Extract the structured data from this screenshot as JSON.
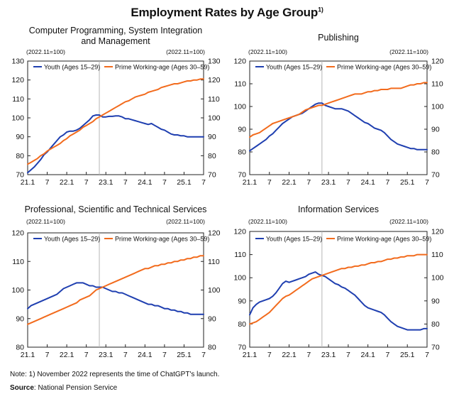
{
  "title": {
    "text": "Employment Rates by Age Group",
    "sup": "1)"
  },
  "note": "Note: 1) November 2022 represents the time of ChatGPT's launch.",
  "source": {
    "label": "Source",
    "text": ": National Pension Service"
  },
  "colors": {
    "youth": "#1f3fb0",
    "prime": "#f26b1d",
    "axis": "#222222",
    "marker": "#b5b5b5"
  },
  "chart_data": [
    {
      "type": "line",
      "title_lines": [
        "Computer Programming, System Integration",
        "and Management"
      ],
      "index_label_left": "(2022.11=100)",
      "index_label_right": "(2022.11=100)",
      "x_tick_labels": [
        "21.1",
        "7",
        "22.1",
        "7",
        "23.1",
        "7",
        "24.1",
        "7",
        "25.1",
        "7"
      ],
      "x_range_months": [
        0,
        54
      ],
      "marker_month": 22,
      "ylim": [
        70,
        130
      ],
      "yticks": [
        70,
        80,
        90,
        100,
        110,
        120,
        130
      ],
      "legend_position": "top-left",
      "series": [
        {
          "name": "Youth (Ages 15–29)",
          "color_key": "youth",
          "values": [
            71,
            72.5,
            74,
            76,
            78,
            80.5,
            82,
            84,
            86,
            88,
            90,
            91,
            92.5,
            93,
            93,
            93.5,
            94.5,
            96,
            97.5,
            99,
            101,
            101.5,
            101.5,
            100.5,
            100.5,
            100.8,
            100.8,
            101,
            101,
            100.5,
            99.5,
            99.5,
            99,
            98.5,
            98,
            97.5,
            97,
            96.5,
            97,
            96,
            95,
            94,
            93.5,
            92.5,
            91.5,
            91,
            91,
            90.5,
            90.5,
            90,
            90,
            90,
            90,
            90,
            90
          ]
        },
        {
          "name": "Prime Working-age (Ages 30–59)",
          "color_key": "prime",
          "values": [
            75.5,
            76.5,
            77.5,
            78.5,
            80,
            81,
            82.5,
            83.5,
            84.5,
            85.5,
            86.5,
            88,
            89,
            90.5,
            91.5,
            92.5,
            93.5,
            95,
            96,
            97,
            98,
            99.5,
            100.5,
            101.5,
            102.5,
            103.5,
            104.5,
            105.5,
            106.5,
            107.5,
            108.5,
            109,
            110,
            111,
            111.5,
            112,
            112.5,
            113.5,
            114,
            114.5,
            115,
            116,
            116.5,
            117,
            117.5,
            118,
            118,
            118.5,
            119,
            119.5,
            119.5,
            120,
            120,
            120.5,
            120.5
          ]
        }
      ]
    },
    {
      "type": "line",
      "title_lines": [
        "Publishing"
      ],
      "index_label_left": "(2022.11=100)",
      "index_label_right": "(2022.11=100)",
      "x_tick_labels": [
        "21.1",
        "7",
        "22.1",
        "7",
        "23.1",
        "7",
        "24.1",
        "7",
        "25.1",
        "7"
      ],
      "x_range_months": [
        0,
        54
      ],
      "marker_month": 22,
      "ylim": [
        70,
        120
      ],
      "yticks": [
        70,
        80,
        90,
        100,
        110,
        120
      ],
      "legend_position": "top-left",
      "series": [
        {
          "name": "Youth (Ages 15–29)",
          "color_key": "youth",
          "values": [
            80.5,
            81.5,
            82.5,
            83.5,
            84.5,
            85.5,
            87,
            88,
            89.5,
            91,
            92.5,
            93.5,
            94.5,
            95.5,
            96,
            96.5,
            97,
            98,
            99,
            100,
            101,
            101.5,
            101.5,
            100.5,
            100,
            99.5,
            99,
            99,
            99,
            98.5,
            98,
            97,
            96,
            95,
            94,
            93,
            92.5,
            91.5,
            90.5,
            90,
            89.5,
            88.5,
            87,
            85.5,
            84.5,
            83.5,
            83,
            82.5,
            82,
            81.5,
            81.5,
            81,
            81,
            81,
            81
          ]
        },
        {
          "name": "Prime Working-age (Ages 30–59)",
          "color_key": "prime",
          "values": [
            86.5,
            87.5,
            88,
            88.5,
            89.5,
            90.5,
            91.5,
            92.5,
            93,
            93.5,
            94,
            94.5,
            95,
            95.5,
            96,
            96.5,
            97.5,
            98.5,
            99,
            99.5,
            100,
            100.5,
            100.5,
            101,
            101.5,
            102,
            102.5,
            103,
            103.5,
            104,
            104.5,
            105,
            105.5,
            105.5,
            105.5,
            106,
            106.5,
            106.5,
            107,
            107,
            107.5,
            107.5,
            107.5,
            108,
            108,
            108,
            108,
            108.5,
            109,
            109.5,
            109.5,
            110,
            110,
            110.5,
            110.5
          ]
        }
      ]
    },
    {
      "type": "line",
      "title_lines": [
        "Professional, Scientific and Technical Services"
      ],
      "index_label_left": "(2022.11=100)",
      "index_label_right": "(2022.11=100)",
      "x_tick_labels": [
        "21.1",
        "7",
        "22.1",
        "7",
        "23.1",
        "7",
        "24.1",
        "7",
        "25.1",
        "7"
      ],
      "x_range_months": [
        0,
        54
      ],
      "marker_month": 22,
      "ylim": [
        80,
        120
      ],
      "yticks": [
        80,
        90,
        100,
        110,
        120
      ],
      "legend_position": "top-left",
      "series": [
        {
          "name": "Youth (Ages 15–29)",
          "color_key": "youth",
          "values": [
            93.5,
            94.5,
            95,
            95.5,
            96,
            96.5,
            97,
            97.5,
            98,
            98.5,
            99.5,
            100.5,
            101,
            101.5,
            102,
            102.5,
            102.5,
            102.5,
            102,
            101.5,
            101.5,
            101,
            101,
            101,
            100.5,
            100,
            99.5,
            99.5,
            99,
            99,
            98.5,
            98,
            97.5,
            97,
            96.5,
            96,
            95.5,
            95,
            95,
            94.5,
            94.5,
            94,
            93.5,
            93.5,
            93,
            93,
            92.5,
            92.5,
            92,
            92,
            91.5,
            91.5,
            91.5,
            91.5,
            91.5
          ]
        },
        {
          "name": "Prime Working-age (Ages 30–59)",
          "color_key": "prime",
          "values": [
            88,
            88.5,
            89,
            89.5,
            90,
            90.5,
            91,
            91.5,
            92,
            92.5,
            93,
            93.5,
            94,
            94.5,
            95,
            95.5,
            96.5,
            97,
            97.5,
            98,
            99,
            100,
            100.5,
            101,
            101.5,
            102,
            102.5,
            103,
            103.5,
            104,
            104.5,
            105,
            105.5,
            106,
            106.5,
            107,
            107.5,
            107.5,
            108,
            108.5,
            108.5,
            109,
            109,
            109.5,
            109.5,
            110,
            110,
            110.5,
            110.5,
            111,
            111,
            111.5,
            111.5,
            112,
            112
          ]
        }
      ]
    },
    {
      "type": "line",
      "title_lines": [
        "Information Services"
      ],
      "index_label_left": "(2022.11=100)",
      "index_label_right": "(2022.11=100)",
      "x_tick_labels": [
        "21.1",
        "7",
        "22.1",
        "7",
        "23.1",
        "7",
        "24.1",
        "7",
        "25.1",
        "7"
      ],
      "x_range_months": [
        0,
        54
      ],
      "marker_month": 22,
      "ylim": [
        70,
        120
      ],
      "yticks": [
        70,
        80,
        90,
        100,
        110,
        120
      ],
      "legend_position": "top-left",
      "series": [
        {
          "name": "Youth (Ages 15–29)",
          "color_key": "youth",
          "values": [
            84,
            87,
            88.5,
            89.5,
            90,
            90.5,
            91,
            92,
            93.5,
            95.5,
            97.5,
            98.5,
            98,
            98.5,
            99,
            99.5,
            100,
            100.5,
            101.5,
            102,
            102.5,
            101.5,
            101,
            100.5,
            99.5,
            98.5,
            97.5,
            97,
            96,
            95.5,
            94.5,
            93.5,
            92.5,
            91,
            89.5,
            88,
            87,
            86.5,
            86,
            85.5,
            85,
            84,
            82.5,
            81,
            80,
            79,
            78.5,
            78,
            77.5,
            77.5,
            77.5,
            77.5,
            77.5,
            78,
            78
          ]
        },
        {
          "name": "Prime Working-age (Ages 30–59)",
          "color_key": "prime",
          "values": [
            80,
            80.5,
            81,
            82,
            83,
            84,
            85,
            86.5,
            88,
            89.5,
            91,
            92,
            92.5,
            93.5,
            94.5,
            95.5,
            96.5,
            97.5,
            98.5,
            99.5,
            100,
            100.5,
            101,
            101.5,
            102,
            102.5,
            103,
            103.5,
            104,
            104,
            104.5,
            104.5,
            105,
            105,
            105.5,
            105.5,
            106,
            106.5,
            106.5,
            107,
            107,
            107.5,
            108,
            108,
            108.5,
            108.5,
            109,
            109,
            109.5,
            109.5,
            109.5,
            110,
            110,
            110,
            110
          ]
        }
      ]
    }
  ]
}
